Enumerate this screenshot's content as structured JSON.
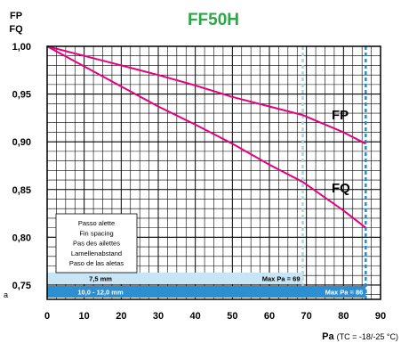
{
  "chart_data": {
    "type": "line",
    "title": "FF50H",
    "ylabel_lines": [
      "FP",
      "FQ"
    ],
    "xlabel_main": "Pa",
    "xlabel_cond": "(TC = -18/-25 °C)",
    "xlim": [
      0,
      90
    ],
    "ylim": [
      0.735,
      1.0
    ],
    "x_ticks": [
      0,
      10,
      20,
      30,
      40,
      50,
      60,
      70,
      80,
      90
    ],
    "x_tick_labels": [
      "0",
      "10",
      "20",
      "30",
      "40",
      "50",
      "60",
      "70",
      "80",
      "90"
    ],
    "y_tick_labels": [
      {
        "value": 1.0,
        "label": "1,00"
      },
      {
        "value": 0.95,
        "label": "0,95"
      },
      {
        "value": 0.9,
        "label": "0,90"
      },
      {
        "value": 0.85,
        "label": "0,85"
      },
      {
        "value": 0.8,
        "label": "0,80"
      },
      {
        "value": 0.75,
        "label": "0,75"
      }
    ],
    "y_grid_step": 0.01,
    "vertical_grid_step": 2.5,
    "series": [
      {
        "name": "FP",
        "color": "#e6007e",
        "x": [
          0,
          10,
          20,
          30,
          40,
          50,
          60,
          69,
          80,
          86
        ],
        "y": [
          1.0,
          0.99,
          0.98,
          0.97,
          0.959,
          0.947,
          0.937,
          0.928,
          0.91,
          0.898
        ]
      },
      {
        "name": "FQ",
        "color": "#e6007e",
        "x": [
          0,
          10,
          20,
          30,
          40,
          50,
          60,
          69,
          80,
          86
        ],
        "y": [
          1.0,
          0.979,
          0.958,
          0.937,
          0.918,
          0.898,
          0.876,
          0.858,
          0.828,
          0.81
        ]
      }
    ],
    "max_lines": [
      {
        "x": 69,
        "color": "#9fd3ee"
      },
      {
        "x": 86,
        "color": "#1e88d0"
      }
    ],
    "legend": {
      "lines": [
        "Passo alette",
        "Fin spacing",
        "Pas des ailettes",
        "Lamellenabstand",
        "Paso de las aletas"
      ]
    },
    "bands": [
      {
        "spacing": "7,5 mm",
        "max_label": "Max  Pa = 69",
        "max_x": 69,
        "fill": "#c8e5f5",
        "text_color": "#000000"
      },
      {
        "spacing": "10,0  -  12,0 mm",
        "max_label": "Max  Pa = 86",
        "max_x": 86,
        "fill": "#2b8fd1",
        "text_color": "#ffffff"
      }
    ],
    "left_edge_fragment": "a"
  }
}
